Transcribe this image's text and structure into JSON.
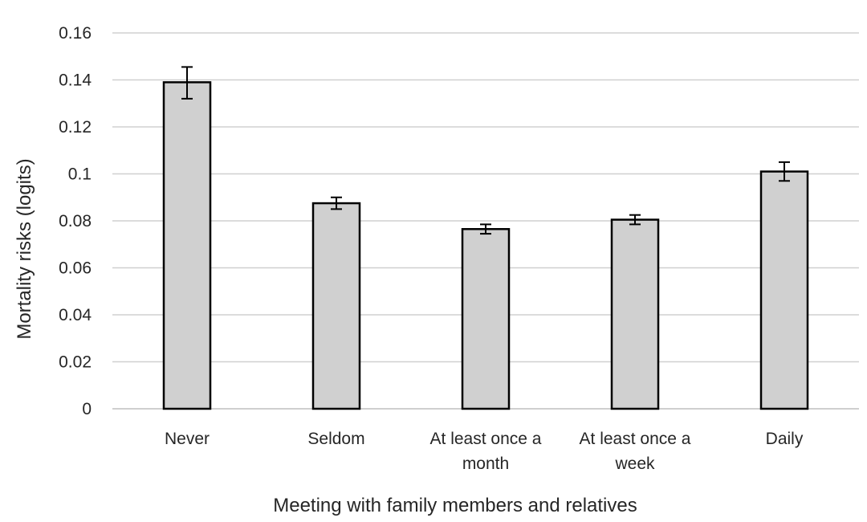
{
  "chart_data": {
    "type": "bar",
    "categories": [
      [
        "Never"
      ],
      [
        "Seldom"
      ],
      [
        "At least once a",
        "month"
      ],
      [
        "At least once a",
        "week"
      ],
      [
        "Daily"
      ]
    ],
    "values": [
      0.139,
      0.0875,
      0.0765,
      0.0805,
      0.101
    ],
    "error_low": [
      0.132,
      0.085,
      0.0745,
      0.0785,
      0.097
    ],
    "error_high": [
      0.1455,
      0.09,
      0.0785,
      0.0825,
      0.105
    ],
    "title": "",
    "xlabel": "Meeting with family members and relatives",
    "ylabel": "Mortality risks (logits)",
    "ylim": [
      0,
      0.16
    ],
    "yticks": [
      0,
      0.02,
      0.04,
      0.06,
      0.08,
      0.1,
      0.12,
      0.14,
      0.16
    ],
    "ytick_labels": [
      "0",
      "0.02",
      "0.04",
      "0.06",
      "0.08",
      "0.1",
      "0.12",
      "0.14",
      "0.16"
    ],
    "grid": true,
    "legend": "none",
    "bar_color": "#d0d0d0",
    "bar_edge_color": "#000000",
    "gridline_color": "#d0d0d0"
  }
}
